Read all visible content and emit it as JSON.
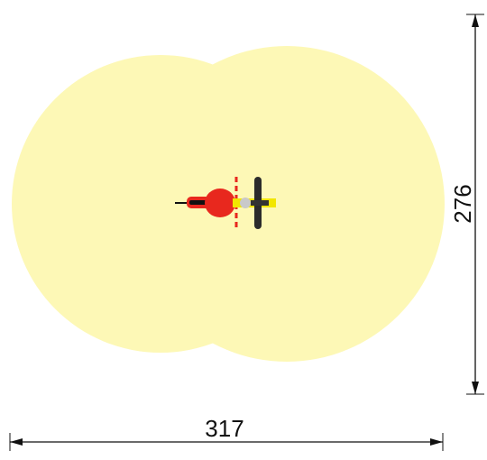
{
  "plan": {
    "safety_zone_color": "#fdf8b6",
    "equipment_colors": {
      "seat": "#e8281e",
      "frame": "#f2e600",
      "tire": "#2b2b2b",
      "handle": "#333333"
    }
  },
  "dimensions": {
    "width_value": "317",
    "height_value": "276"
  }
}
